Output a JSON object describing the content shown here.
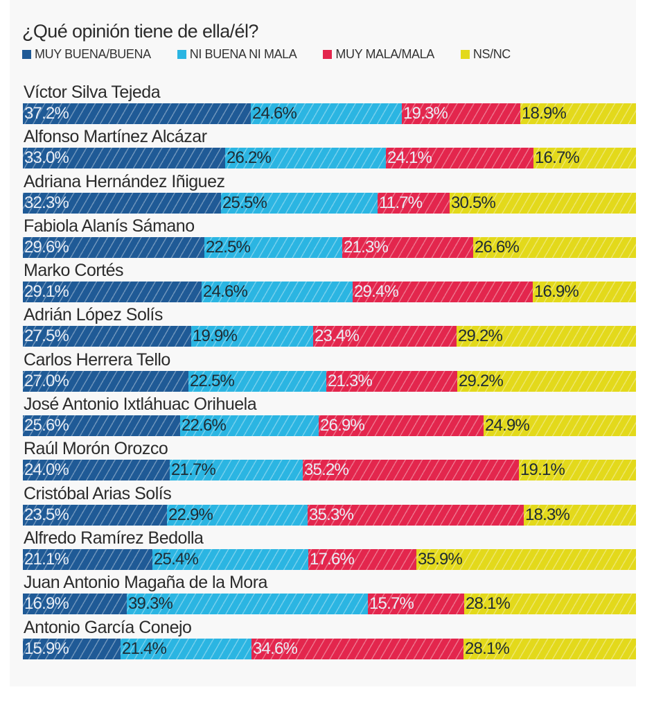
{
  "colors": {
    "muy_buena_buena": "#1f5a96",
    "ni_buena_ni_mala": "#2bb5e2",
    "muy_mala_mala": "#e3264d",
    "ns_nc": "#e3d91b"
  },
  "chart_data": {
    "type": "bar",
    "orientation": "horizontal",
    "stacked": true,
    "title": "¿Qué opinión tiene de ella/él?",
    "xlabel": "",
    "ylabel": "",
    "xlim": [
      0,
      100
    ],
    "grid": false,
    "legend_position": "top-left",
    "legend": [
      "MUY BUENA/BUENA",
      "NI BUENA NI MALA",
      "MUY MALA/MALA",
      "NS/NC"
    ],
    "categories": [
      "Víctor Silva Tejeda",
      "Alfonso Martínez Alcázar",
      "Adriana Hernández Iñiguez",
      "Fabiola Alanís Sámano",
      "Marko Cortés",
      "Adrián López Solís",
      "Carlos Herrera Tello",
      "José Antonio Ixtláhuac Orihuela",
      "Raúl Morón Orozco",
      "Cristóbal Arias Solís",
      "Alfredo Ramírez Bedolla",
      "Juan Antonio Magaña de la Mora",
      "Antonio García Conejo"
    ],
    "series": [
      {
        "name": "MUY BUENA/BUENA",
        "color": "#1f5a96",
        "label_tone": "light",
        "values": [
          37.2,
          33.0,
          32.3,
          29.6,
          29.1,
          27.5,
          27.0,
          25.6,
          24.0,
          23.5,
          21.1,
          16.9,
          15.9
        ],
        "labels": [
          "37.2%",
          "33.0%",
          "32.3%",
          "29.6%",
          "29.1%",
          "27.5%",
          "27.0%",
          "25.6%",
          "24.0%",
          "23.5%",
          "21.1%",
          "16.9%",
          "15.9%"
        ]
      },
      {
        "name": "NI BUENA NI MALA",
        "color": "#2bb5e2",
        "label_tone": "dark",
        "values": [
          24.6,
          26.2,
          25.5,
          22.5,
          24.6,
          19.9,
          22.5,
          22.6,
          21.7,
          22.9,
          25.4,
          39.3,
          21.4
        ],
        "labels": [
          "24.6%",
          "26.2%",
          "25.5%",
          "22.5%",
          "24.6%",
          "19.9%",
          "22.5%",
          "22.6%",
          "21.7%",
          "22.9%",
          "25.4%",
          "39.3%",
          "21.4%"
        ]
      },
      {
        "name": "MUY MALA/MALA",
        "color": "#e3264d",
        "label_tone": "light",
        "values": [
          19.3,
          24.1,
          11.7,
          21.3,
          29.4,
          23.4,
          21.3,
          26.9,
          35.2,
          35.3,
          17.6,
          15.7,
          34.6
        ],
        "labels": [
          "19.3%",
          "24.1%",
          "11.7%",
          "21.3%",
          "29.4%",
          "23.4%",
          "21.3%",
          "26.9%",
          "35.2%",
          "35.3%",
          "17.6%",
          "15.7%",
          "34.6%"
        ]
      },
      {
        "name": "NS/NC",
        "color": "#e3d91b",
        "label_tone": "dark",
        "values": [
          18.9,
          16.7,
          30.5,
          26.6,
          16.9,
          29.2,
          29.2,
          24.9,
          19.1,
          18.3,
          35.9,
          28.1,
          28.1
        ],
        "labels": [
          "18.9%",
          "16.7%",
          "30.5%",
          "26.6%",
          "16.9%",
          "29.2%",
          "29.2%",
          "24.9%",
          "19.1%",
          "18.3%",
          "35.9%",
          "28.1%",
          "28.1%"
        ]
      }
    ]
  }
}
